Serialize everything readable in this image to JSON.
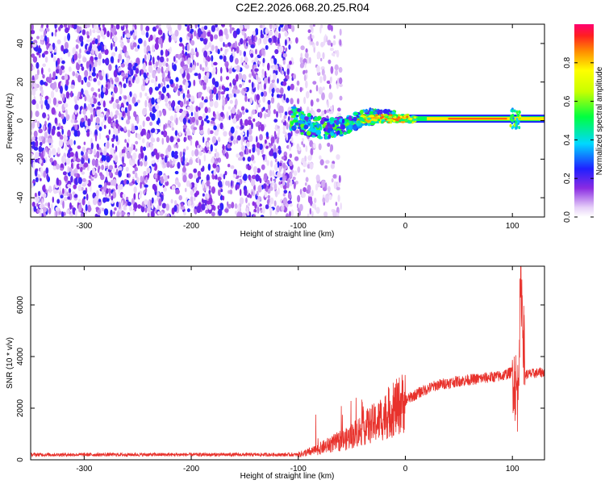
{
  "title": "C2E2.2026.068.20.25.R04",
  "chart_data": [
    {
      "type": "heatmap",
      "xlabel": "Height of straight line (km)",
      "ylabel": "Frequency (Hz)",
      "xlim": [
        -350,
        130
      ],
      "ylim": [
        -50,
        50
      ],
      "xticks": [
        -300,
        -200,
        -100,
        0,
        100
      ],
      "yticks": [
        -40,
        -20,
        0,
        20,
        40
      ],
      "colorbar": {
        "label": "Normalized spectral amplitude",
        "range": [
          0,
          1
        ],
        "ticks": [
          0.0,
          0.2,
          0.4,
          0.6,
          0.8
        ]
      },
      "regions": [
        {
          "name": "noise",
          "x_range": [
            -350,
            -105
          ],
          "y_range": [
            -50,
            50
          ],
          "level": 0.2
        },
        {
          "name": "sparse-noise",
          "x_range": [
            -105,
            -60
          ],
          "y_range": [
            -50,
            50
          ],
          "level": 0.1
        },
        {
          "name": "signal-onset",
          "x_range": [
            -108,
            -70
          ],
          "y_center": 2,
          "level": 0.4
        },
        {
          "name": "carrier",
          "x_range": [
            -70,
            130
          ],
          "y_center": 1,
          "level": 0.9
        }
      ]
    },
    {
      "type": "line",
      "xlabel": "Height of straight line (km)",
      "ylabel": "SNR (10 * v/v)",
      "xlim": [
        -350,
        130
      ],
      "ylim": [
        0,
        7500
      ],
      "xticks": [
        -300,
        -200,
        -100,
        0,
        100
      ],
      "yticks": [
        0,
        2000,
        4000,
        6000
      ],
      "color": "#e8322c",
      "envelope": [
        {
          "x": -350,
          "y": 200
        },
        {
          "x": -100,
          "y": 200
        },
        {
          "x": -85,
          "y": 350
        },
        {
          "x": -70,
          "y": 600
        },
        {
          "x": -55,
          "y": 800
        },
        {
          "x": -40,
          "y": 1200
        },
        {
          "x": -25,
          "y": 1500
        },
        {
          "x": -15,
          "y": 1800
        },
        {
          "x": 0,
          "y": 2300
        },
        {
          "x": 15,
          "y": 2650
        },
        {
          "x": 30,
          "y": 2900
        },
        {
          "x": 50,
          "y": 3050
        },
        {
          "x": 70,
          "y": 3150
        },
        {
          "x": 90,
          "y": 3250
        },
        {
          "x": 100,
          "y": 3400
        },
        {
          "x": 105,
          "y": 2500
        },
        {
          "x": 108,
          "y": 7000
        },
        {
          "x": 112,
          "y": 3300
        },
        {
          "x": 130,
          "y": 3400
        }
      ]
    }
  ]
}
